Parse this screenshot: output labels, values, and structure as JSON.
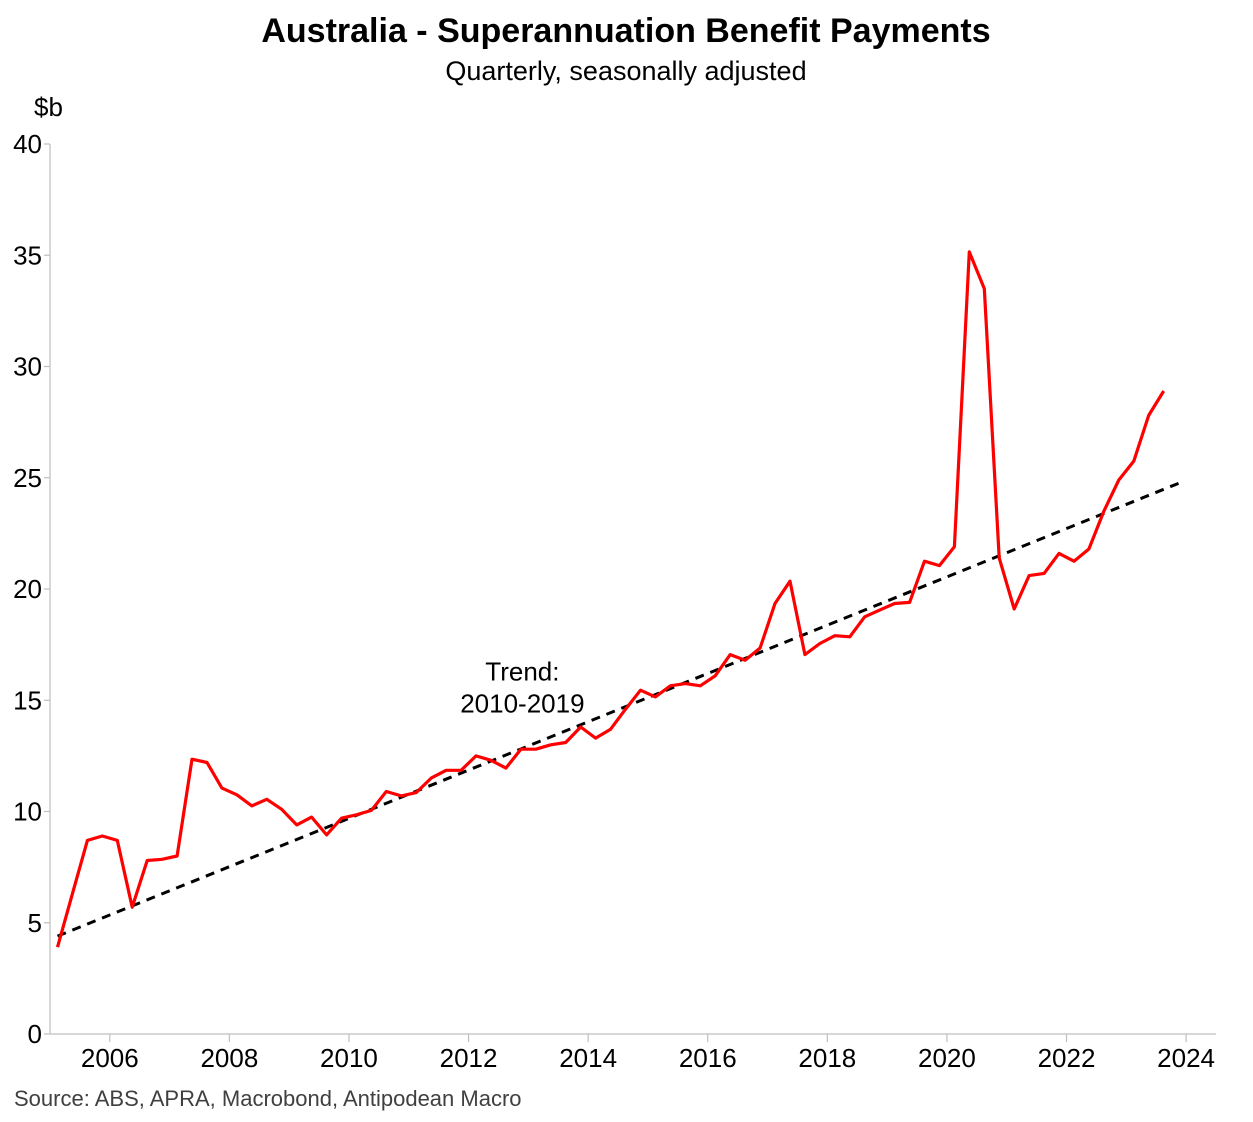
{
  "chart_data": {
    "type": "line",
    "title": "Australia - Superannuation Benefit Payments",
    "subtitle": "Quarterly, seasonally adjusted",
    "ylabel": "$b",
    "xlabel": "",
    "ylim": [
      0,
      40
    ],
    "xlim": [
      2005.0,
      2024.5
    ],
    "yticks": [
      0,
      5,
      10,
      15,
      20,
      25,
      30,
      35,
      40
    ],
    "xticks": [
      2006,
      2008,
      2010,
      2012,
      2014,
      2016,
      2018,
      2020,
      2022,
      2024
    ],
    "grid": false,
    "series": [
      {
        "name": "Superannuation Benefit Payments",
        "color": "#ff0000",
        "dash": "none",
        "x": [
          2005.125,
          2005.375,
          2005.625,
          2005.875,
          2006.125,
          2006.375,
          2006.625,
          2006.875,
          2007.125,
          2007.375,
          2007.625,
          2007.875,
          2008.125,
          2008.375,
          2008.625,
          2008.875,
          2009.125,
          2009.375,
          2009.625,
          2009.875,
          2010.125,
          2010.375,
          2010.625,
          2010.875,
          2011.125,
          2011.375,
          2011.625,
          2011.875,
          2012.125,
          2012.375,
          2012.625,
          2012.875,
          2013.125,
          2013.375,
          2013.625,
          2013.875,
          2014.125,
          2014.375,
          2014.625,
          2014.875,
          2015.125,
          2015.375,
          2015.625,
          2015.875,
          2016.125,
          2016.375,
          2016.625,
          2016.875,
          2017.125,
          2017.375,
          2017.625,
          2017.875,
          2018.125,
          2018.375,
          2018.625,
          2018.875,
          2019.125,
          2019.375,
          2019.625,
          2019.875,
          2020.125,
          2020.375,
          2020.625,
          2020.875,
          2021.125,
          2021.375,
          2021.625,
          2021.875,
          2022.125,
          2022.375,
          2022.625,
          2022.875,
          2023.125,
          2023.375,
          2023.625
        ],
        "values": [
          3.9,
          6.3,
          8.7,
          8.9,
          8.7,
          5.7,
          7.8,
          7.85,
          8.0,
          12.35,
          12.2,
          11.05,
          10.75,
          10.25,
          10.55,
          10.1,
          9.4,
          9.75,
          8.95,
          9.7,
          9.85,
          10.05,
          10.9,
          10.7,
          10.85,
          11.5,
          11.85,
          11.85,
          12.5,
          12.3,
          11.95,
          12.8,
          12.8,
          13.0,
          13.1,
          13.8,
          13.3,
          13.7,
          14.6,
          15.45,
          15.15,
          15.65,
          15.75,
          15.65,
          16.1,
          17.05,
          16.8,
          17.35,
          19.35,
          20.35,
          17.05,
          17.55,
          17.9,
          17.85,
          18.75,
          19.05,
          19.35,
          19.4,
          21.25,
          21.05,
          21.9,
          35.15,
          33.5,
          21.4,
          19.1,
          20.6,
          20.7,
          21.6,
          21.25,
          21.8,
          23.5,
          24.9,
          25.75,
          27.8,
          28.9
        ]
      },
      {
        "name": "Trend: 2010-2019",
        "color": "#000000",
        "dash": "dashed",
        "x": [
          2005.125,
          2023.875
        ],
        "values": [
          4.4,
          24.75
        ]
      }
    ],
    "annotations": [
      {
        "lines": [
          "Trend:",
          "2010-2019"
        ],
        "x": 2012.9,
        "y": 16.3
      }
    ],
    "source": "Source: ABS, APRA, Macrobond, Antipodean Macro"
  }
}
